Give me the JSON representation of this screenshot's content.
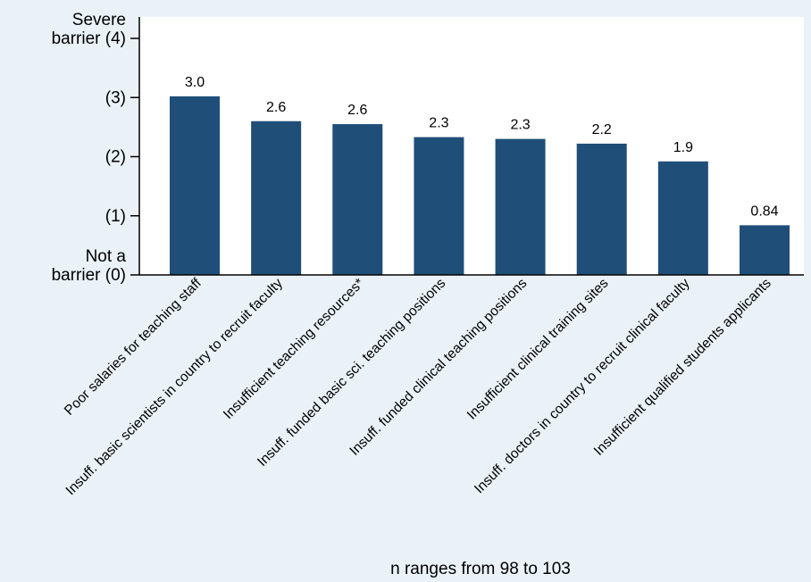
{
  "chart_data": {
    "type": "bar",
    "categories": [
      "Poor salaries for teaching staff",
      "Insuff. basic scientists in country to recruit faculty",
      "Insufficient teaching resources*",
      "Insuff. funded basic sci. teaching positions",
      "Insuff. funded clinical teaching positions",
      "Insufficient clinical training sites",
      "Insuff. doctors in country to recruit clinical faculty",
      "Insufficient qualified students applicants"
    ],
    "values": [
      3.02,
      2.6,
      2.55,
      2.33,
      2.3,
      2.22,
      1.92,
      0.84
    ],
    "value_labels": [
      "3.0",
      "2.6",
      "2.6",
      "2.3",
      "2.3",
      "2.2",
      "1.9",
      "0.84"
    ],
    "ylim": [
      0,
      4
    ],
    "yticks": [
      {
        "value": 4,
        "lines": [
          "Severe",
          "barrier (4)"
        ]
      },
      {
        "value": 3,
        "lines": [
          "(3)"
        ]
      },
      {
        "value": 2,
        "lines": [
          "(2)"
        ]
      },
      {
        "value": 1,
        "lines": [
          "(1)"
        ]
      },
      {
        "value": 0,
        "lines": [
          "Not a",
          "barrier (0)"
        ]
      }
    ],
    "note": "n ranges from 98 to 103",
    "grid": false,
    "bar_color": "#1f4e79",
    "plot_background": "#eaf2f8"
  }
}
